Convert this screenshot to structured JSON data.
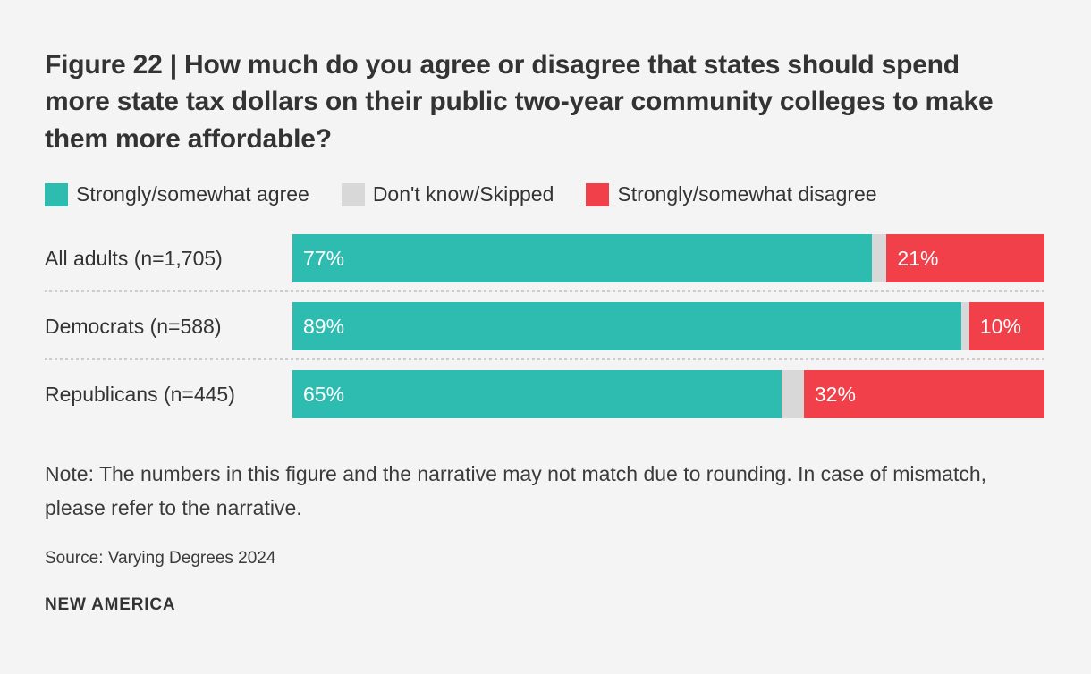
{
  "figure": {
    "title": "Figure 22 | How much do you agree or disagree that states should spend more state tax dollars on their public two-year community colleges to make them more affordable?",
    "note": "Note: The numbers in this figure and the narrative may not match due to rounding. In case of mismatch, please refer to the narrative.",
    "source": "Source: Varying Degrees 2024",
    "brand": "NEW AMERICA"
  },
  "colors": {
    "agree": "#2FBCB0",
    "neutral": "#D8D8D8",
    "disagree": "#F2404B",
    "background": "#F4F4F4",
    "text": "#333333"
  },
  "legend": [
    {
      "label": "Strongly/somewhat agree",
      "color": "#2FBCB0"
    },
    {
      "label": "Don't know/Skipped",
      "color": "#D8D8D8"
    },
    {
      "label": "Strongly/somewhat disagree",
      "color": "#F2404B"
    }
  ],
  "chart_data": {
    "type": "bar",
    "orientation": "horizontal",
    "stacked": true,
    "title": "Figure 22 | How much do you agree or disagree that states should spend more state tax dollars on their public two-year community colleges to make them more affordable?",
    "categories": [
      "All adults (n=1,705)",
      "Democrats (n=588)",
      "Republicans (n=445)"
    ],
    "series": [
      {
        "name": "Strongly/somewhat agree",
        "color": "#2FBCB0",
        "values": [
          77,
          89,
          65
        ]
      },
      {
        "name": "Don't know/Skipped",
        "color": "#D8D8D8",
        "values": [
          2,
          1,
          3
        ]
      },
      {
        "name": "Strongly/somewhat disagree",
        "color": "#F2404B",
        "values": [
          21,
          10,
          32
        ]
      }
    ],
    "value_labels": {
      "agree": [
        "77%",
        "89%",
        "65%"
      ],
      "disagree": [
        "21%",
        "10%",
        "32%"
      ]
    },
    "xlim": [
      0,
      100
    ],
    "legend_position": "top",
    "grid": false
  }
}
